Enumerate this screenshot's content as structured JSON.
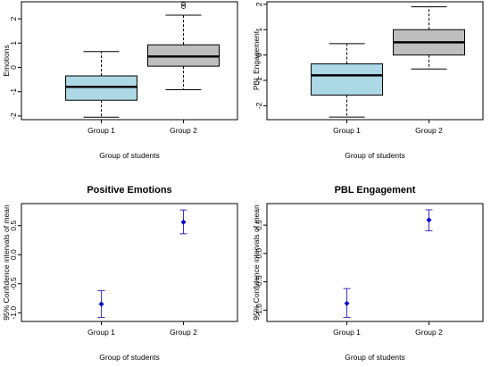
{
  "chart_data": [
    {
      "type": "boxplot",
      "title": "",
      "xlabel": "Group of students",
      "ylabel": "Emotions",
      "categories": [
        "Group 1",
        "Group 2"
      ],
      "ylim": [
        -2.15,
        2.7
      ],
      "yticks": [
        -2,
        -1,
        0,
        1,
        2
      ],
      "boxes": [
        {
          "category": "Group 1",
          "whisker_low": -2.05,
          "q1": -1.35,
          "median": -0.8,
          "q3": -0.35,
          "whisker_high": 0.65,
          "outliers": []
        },
        {
          "category": "Group 2",
          "whisker_low": -0.92,
          "q1": 0.05,
          "median": 0.45,
          "q3": 0.93,
          "whisker_high": 2.15,
          "outliers": [
            2.5,
            2.6
          ]
        }
      ],
      "colors": [
        "#add8e6",
        "#bebebe"
      ]
    },
    {
      "type": "boxplot",
      "title": "",
      "xlabel": "Group of students",
      "ylabel": "PBL Engagement",
      "categories": [
        "Group 1",
        "Group 2"
      ],
      "ylim": [
        -2.55,
        2.1
      ],
      "yticks": [
        -2,
        -1,
        0,
        1,
        2
      ],
      "boxes": [
        {
          "category": "Group 1",
          "whisker_low": -2.45,
          "q1": -1.58,
          "median": -0.8,
          "q3": -0.35,
          "whisker_high": 0.45,
          "outliers": []
        },
        {
          "category": "Group 2",
          "whisker_low": -0.55,
          "q1": 0.0,
          "median": 0.5,
          "q3": 1.0,
          "whisker_high": 1.9,
          "outliers": []
        }
      ],
      "colors": [
        "#add8e6",
        "#bebebe"
      ]
    },
    {
      "type": "errorbar",
      "title": "Positive Emotions",
      "xlabel": "Group of students",
      "ylabel": "95% Confidence intervals of mean",
      "categories": [
        "Group 1",
        "Group 2"
      ],
      "ylim": [
        -1.15,
        0.88
      ],
      "yticks": [
        -1.0,
        -0.5,
        0.0,
        0.5
      ],
      "ytick_labels": [
        "-1.0",
        "-0.5",
        "0.0",
        "0.5"
      ],
      "points": [
        {
          "category": "Group 1",
          "mean": -0.85,
          "lower": -1.08,
          "upper": -0.62
        },
        {
          "category": "Group 2",
          "mean": 0.56,
          "lower": 0.36,
          "upper": 0.77
        }
      ],
      "color": "#3333cc"
    },
    {
      "type": "errorbar",
      "title": "PBL Engagement",
      "xlabel": "Group of students",
      "ylabel": "95% Confidence intervals of mean",
      "categories": [
        "Group 1",
        "Group 2"
      ],
      "ylim": [
        -1.2,
        0.88
      ],
      "yticks": [
        -1.0,
        -0.5,
        0.0,
        0.5
      ],
      "ytick_labels": [
        "-1.0",
        "-0.5",
        "0.0",
        "0.5"
      ],
      "points": [
        {
          "category": "Group 1",
          "mean": -0.88,
          "lower": -1.13,
          "upper": -0.62
        },
        {
          "category": "Group 2",
          "mean": 0.59,
          "lower": 0.4,
          "upper": 0.77
        }
      ],
      "color": "#3333cc"
    }
  ]
}
